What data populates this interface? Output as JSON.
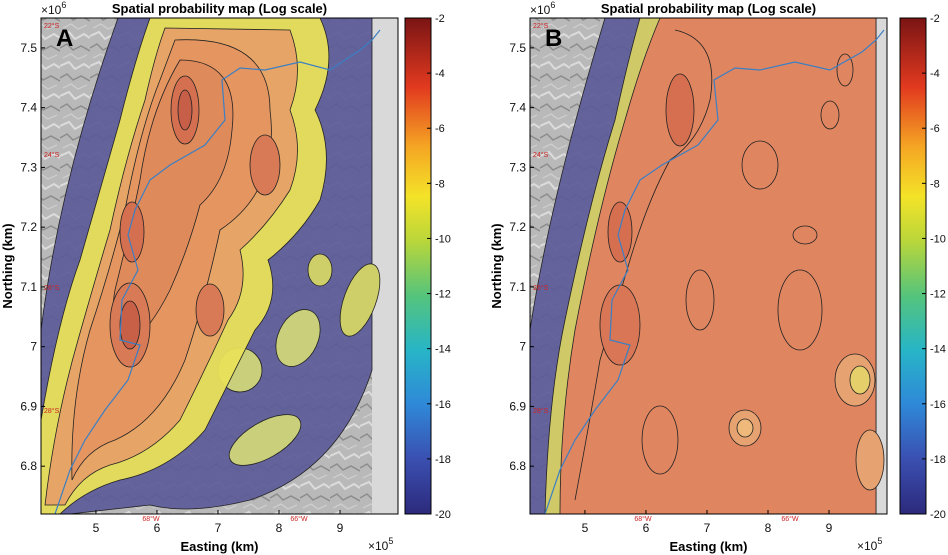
{
  "panels": [
    {
      "id": "A",
      "letter": "A",
      "title": "Spatial probability map (Log scale)",
      "x_multiplier_base": "×10",
      "x_multiplier_exp": "5",
      "y_multiplier_base": "×10",
      "y_multiplier_exp": "6",
      "lat_labels": [
        "22°S",
        "24°S",
        "26°S",
        "28°S"
      ],
      "lon_labels": [
        "68°W",
        "66°W"
      ]
    },
    {
      "id": "B",
      "letter": "B",
      "title": "Spatial probability map (Log scale)",
      "x_multiplier_base": "×10",
      "x_multiplier_exp": "5",
      "y_multiplier_base": "×10",
      "y_multiplier_exp": "6",
      "lat_labels": [
        "22°S",
        "24°S",
        "26°S",
        "28°S"
      ],
      "lon_labels": [
        "68°W",
        "66°W"
      ]
    }
  ],
  "chart_data": [
    {
      "type": "heatmap",
      "title": "Spatial probability map (Log scale)",
      "xlabel": "Easting (km)",
      "ylabel": "Northing (km)",
      "xlim": [
        4.1,
        9.95
      ],
      "ylim": [
        6.72,
        7.55
      ],
      "x_ticks": [
        5,
        6,
        7,
        8,
        9
      ],
      "y_ticks": [
        6.8,
        6.9,
        7,
        7.1,
        7.2,
        7.3,
        7.4,
        7.5
      ],
      "colorbar": {
        "min": -20,
        "max": -2,
        "ticks": [
          -2,
          -4,
          -6,
          -8,
          -10,
          -12,
          -14,
          -16,
          -18,
          -20
        ]
      }
    },
    {
      "type": "heatmap",
      "title": "Spatial probability map (Log scale)",
      "xlabel": "Easting (km)",
      "ylabel": "Northing (km)",
      "xlim": [
        4.1,
        9.95
      ],
      "ylim": [
        6.72,
        7.55
      ],
      "x_ticks": [
        5,
        6,
        7,
        8,
        9
      ],
      "y_ticks": [
        6.8,
        6.9,
        7,
        7.1,
        7.2,
        7.3,
        7.4,
        7.5
      ],
      "colorbar": {
        "min": -20,
        "max": -2,
        "ticks": [
          -2,
          -4,
          -6,
          -8,
          -10,
          -12,
          -14,
          -16,
          -18,
          -20
        ]
      }
    }
  ]
}
